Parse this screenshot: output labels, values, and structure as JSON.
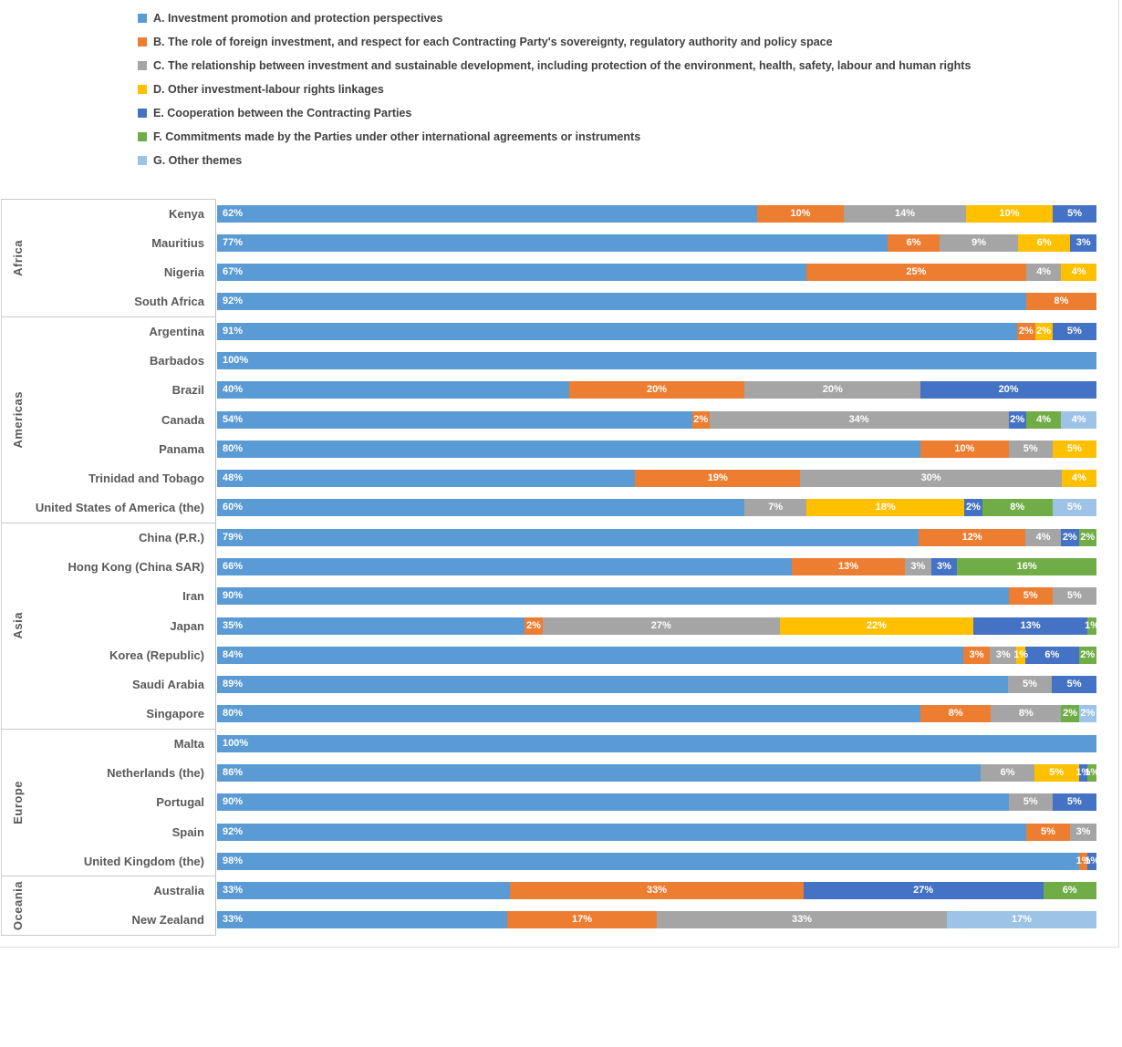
{
  "legend": {
    "items": [
      {
        "key": "A",
        "label": "A. Investment promotion and protection perspectives",
        "color": "#5B9BD5"
      },
      {
        "key": "B",
        "label": "B. The role of foreign investment, and respect for each Contracting Party's sovereignty, regulatory authority and policy space",
        "color": "#ED7D31"
      },
      {
        "key": "C",
        "label": "C. The relationship between investment and sustainable development, including protection of the environment, health, safety, labour and human rights",
        "color": "#A5A5A5"
      },
      {
        "key": "D",
        "label": "D. Other investment-labour rights linkages",
        "color": "#FFC000"
      },
      {
        "key": "E",
        "label": "E. Cooperation between the Contracting Parties",
        "color": "#4472C4"
      },
      {
        "key": "F",
        "label": "F. Commitments made by the Parties under other international agreements or instruments",
        "color": "#70AD47"
      },
      {
        "key": "G",
        "label": "G. Other themes",
        "color": "#9DC3E6"
      }
    ]
  },
  "chart_data": {
    "type": "bar",
    "stacked": true,
    "orientation": "horizontal",
    "unit": "%",
    "xlim": [
      0,
      100
    ],
    "series_keys": [
      "A",
      "B",
      "C",
      "D",
      "E",
      "F",
      "G"
    ],
    "groups": [
      {
        "region": "Africa",
        "rows": [
          {
            "country": "Kenya",
            "segments": [
              [
                "A",
                62
              ],
              [
                "B",
                10
              ],
              [
                "C",
                14
              ],
              [
                "D",
                10
              ],
              [
                "E",
                5
              ]
            ]
          },
          {
            "country": "Mauritius",
            "segments": [
              [
                "A",
                77
              ],
              [
                "B",
                6
              ],
              [
                "C",
                9
              ],
              [
                "D",
                6
              ],
              [
                "E",
                3
              ]
            ]
          },
          {
            "country": "Nigeria",
            "segments": [
              [
                "A",
                67
              ],
              [
                "B",
                25
              ],
              [
                "C",
                4
              ],
              [
                "D",
                4
              ]
            ]
          },
          {
            "country": "South Africa",
            "segments": [
              [
                "A",
                92
              ],
              [
                "B",
                8
              ]
            ]
          }
        ]
      },
      {
        "region": "Americas",
        "rows": [
          {
            "country": "Argentina",
            "segments": [
              [
                "A",
                91
              ],
              [
                "B",
                2
              ],
              [
                "D",
                2
              ],
              [
                "E",
                5
              ]
            ]
          },
          {
            "country": "Barbados",
            "segments": [
              [
                "A",
                100
              ]
            ]
          },
          {
            "country": "Brazil",
            "segments": [
              [
                "A",
                40
              ],
              [
                "B",
                20
              ],
              [
                "C",
                20
              ],
              [
                "E",
                20
              ]
            ]
          },
          {
            "country": "Canada",
            "segments": [
              [
                "A",
                54
              ],
              [
                "B",
                2
              ],
              [
                "C",
                34
              ],
              [
                "E",
                2
              ],
              [
                "F",
                4
              ],
              [
                "G",
                4
              ]
            ]
          },
          {
            "country": "Panama",
            "segments": [
              [
                "A",
                80
              ],
              [
                "B",
                10
              ],
              [
                "C",
                5
              ],
              [
                "D",
                5
              ]
            ]
          },
          {
            "country": "Trinidad and Tobago",
            "segments": [
              [
                "A",
                48
              ],
              [
                "B",
                19
              ],
              [
                "C",
                30
              ],
              [
                "D",
                4
              ]
            ]
          },
          {
            "country": "United States of America (the)",
            "segments": [
              [
                "A",
                60
              ],
              [
                "C",
                7
              ],
              [
                "D",
                18
              ],
              [
                "E",
                2
              ],
              [
                "F",
                8
              ],
              [
                "G",
                5
              ]
            ]
          }
        ]
      },
      {
        "region": "Asia",
        "rows": [
          {
            "country": "China (P.R.)",
            "segments": [
              [
                "A",
                79
              ],
              [
                "B",
                12
              ],
              [
                "C",
                4
              ],
              [
                "E",
                2
              ],
              [
                "F",
                2
              ]
            ]
          },
          {
            "country": "Hong Kong (China SAR)",
            "segments": [
              [
                "A",
                66
              ],
              [
                "B",
                13
              ],
              [
                "C",
                3
              ],
              [
                "E",
                3
              ],
              [
                "F",
                16
              ]
            ]
          },
          {
            "country": "Iran",
            "segments": [
              [
                "A",
                90
              ],
              [
                "B",
                5
              ],
              [
                "C",
                5
              ]
            ]
          },
          {
            "country": "Japan",
            "segments": [
              [
                "A",
                35
              ],
              [
                "B",
                2
              ],
              [
                "C",
                27
              ],
              [
                "D",
                22
              ],
              [
                "E",
                13
              ],
              [
                "F",
                1
              ]
            ]
          },
          {
            "country": "Korea (Republic)",
            "segments": [
              [
                "A",
                84
              ],
              [
                "B",
                3
              ],
              [
                "C",
                3
              ],
              [
                "D",
                1
              ],
              [
                "E",
                6
              ],
              [
                "F",
                2
              ]
            ]
          },
          {
            "country": "Saudi Arabia",
            "segments": [
              [
                "A",
                89
              ],
              [
                "C",
                5
              ],
              [
                "E",
                5
              ]
            ]
          },
          {
            "country": "Singapore",
            "segments": [
              [
                "A",
                80
              ],
              [
                "B",
                8
              ],
              [
                "C",
                8
              ],
              [
                "F",
                2
              ],
              [
                "G",
                2
              ]
            ]
          }
        ]
      },
      {
        "region": "Europe",
        "rows": [
          {
            "country": "Malta",
            "segments": [
              [
                "A",
                100
              ]
            ]
          },
          {
            "country": "Netherlands (the)",
            "segments": [
              [
                "A",
                86
              ],
              [
                "C",
                6
              ],
              [
                "D",
                5
              ],
              [
                "E",
                1
              ],
              [
                "F",
                1
              ]
            ]
          },
          {
            "country": "Portugal",
            "segments": [
              [
                "A",
                90
              ],
              [
                "C",
                5
              ],
              [
                "E",
                5
              ]
            ]
          },
          {
            "country": "Spain",
            "segments": [
              [
                "A",
                92
              ],
              [
                "B",
                5
              ],
              [
                "C",
                3
              ]
            ]
          },
          {
            "country": "United Kingdom (the)",
            "segments": [
              [
                "A",
                98
              ],
              [
                "B",
                1
              ],
              [
                "E",
                1
              ]
            ]
          }
        ]
      },
      {
        "region": "Oceania",
        "rows": [
          {
            "country": "Australia",
            "segments": [
              [
                "A",
                33
              ],
              [
                "B",
                33
              ],
              [
                "E",
                27
              ],
              [
                "F",
                6
              ]
            ]
          },
          {
            "country": "New Zealand",
            "segments": [
              [
                "A",
                33
              ],
              [
                "B",
                17
              ],
              [
                "C",
                33
              ],
              [
                "G",
                17
              ]
            ]
          }
        ]
      }
    ]
  }
}
